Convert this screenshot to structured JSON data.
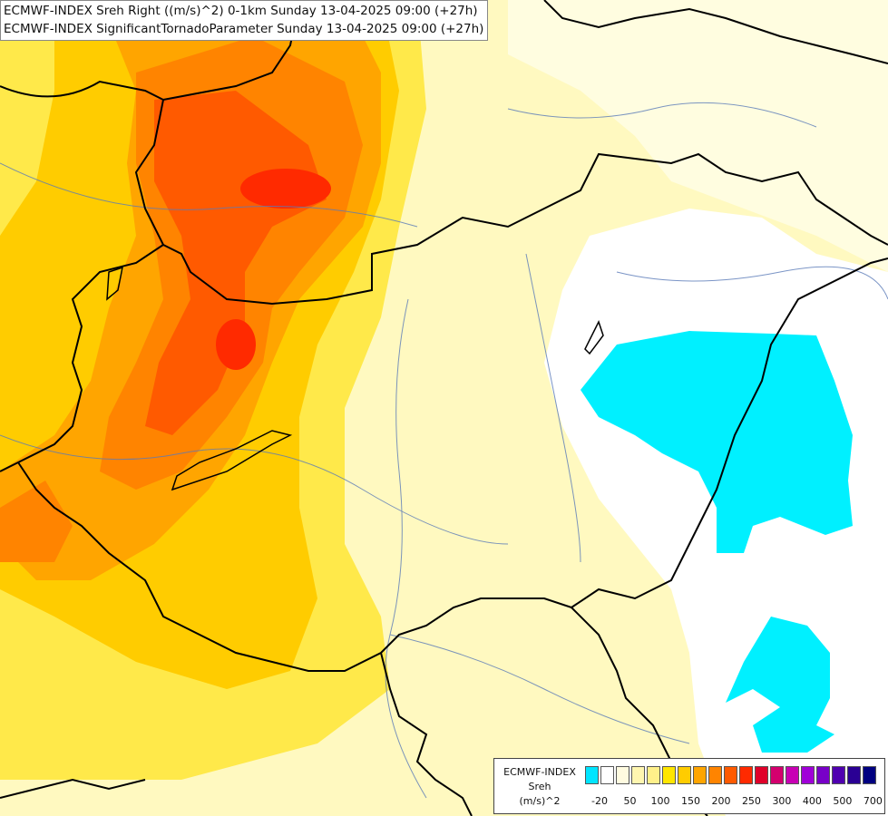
{
  "header": {
    "line1": "ECMWF-INDEX Sreh Right ((m/s)^2) 0-1km Sunday 13-04-2025 09:00 (+27h)",
    "line2": "ECMWF-INDEX SignificantTornadoParameter Sunday 13-04-2025 09:00 (+27h)"
  },
  "legend": {
    "title1": "ECMWF-INDEX",
    "title2": "Sreh",
    "units": "(m/s)^2",
    "colors": [
      "#00e5ff",
      "#ffffff",
      "#fffbe0",
      "#fff6b0",
      "#fff08a",
      "#ffe600",
      "#ffcc00",
      "#ffa500",
      "#ff8400",
      "#ff5a00",
      "#ff2a00",
      "#e0002a",
      "#d4006e",
      "#c800b4",
      "#a000d8",
      "#7800c8",
      "#5000b0",
      "#2a0094",
      "#000080"
    ],
    "ticks": [
      "-20",
      "50",
      "100",
      "150",
      "200",
      "250",
      "300",
      "400",
      "500",
      "700"
    ]
  }
}
